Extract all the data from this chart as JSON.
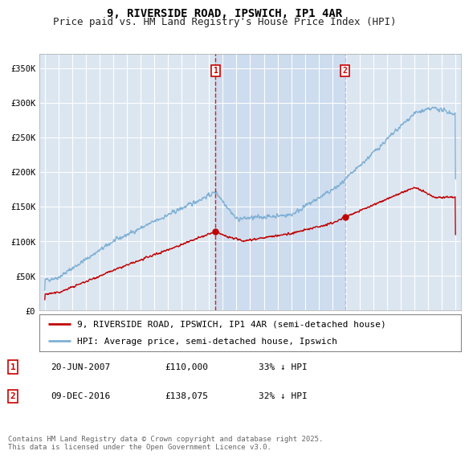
{
  "title": "9, RIVERSIDE ROAD, IPSWICH, IP1 4AR",
  "subtitle": "Price paid vs. HM Land Registry's House Price Index (HPI)",
  "ylim": [
    0,
    370000
  ],
  "yticks": [
    0,
    50000,
    100000,
    150000,
    200000,
    250000,
    300000,
    350000
  ],
  "ytick_labels": [
    "£0",
    "£50K",
    "£100K",
    "£150K",
    "£200K",
    "£250K",
    "£300K",
    "£350K"
  ],
  "background_color": "#ffffff",
  "plot_bg_color": "#dce6f1",
  "grid_color": "#ffffff",
  "hpi_color": "#7eb0d5",
  "price_color": "#c00000",
  "vline1_color": "#cc0000",
  "vline2_color": "#aabbdd",
  "highlight_color": "#c8d8ee",
  "sale1_date": 2007.47,
  "sale2_date": 2016.94,
  "sale1_label": "1",
  "sale2_label": "2",
  "legend_line1": "9, RIVERSIDE ROAD, IPSWICH, IP1 4AR (semi-detached house)",
  "legend_line2": "HPI: Average price, semi-detached house, Ipswich",
  "table_rows": [
    {
      "num": "1",
      "date": "20-JUN-2007",
      "price": "£110,000",
      "hpi": "33% ↓ HPI"
    },
    {
      "num": "2",
      "date": "09-DEC-2016",
      "price": "£138,075",
      "hpi": "32% ↓ HPI"
    }
  ],
  "footnote": "Contains HM Land Registry data © Crown copyright and database right 2025.\nThis data is licensed under the Open Government Licence v3.0.",
  "title_fontsize": 10,
  "subtitle_fontsize": 9,
  "tick_fontsize": 7.5,
  "legend_fontsize": 8,
  "table_fontsize": 8,
  "footnote_fontsize": 6.5
}
